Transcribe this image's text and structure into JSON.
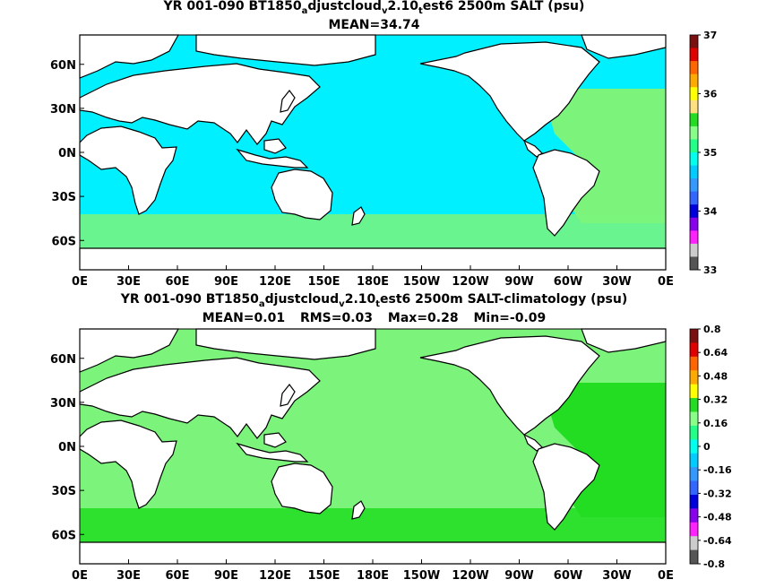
{
  "panels": [
    {
      "title": {
        "prefix": "YR 001-090 BT1850",
        "s1": "a",
        "m1": "djustcloud",
        "s2": "v",
        "m2": "2.10",
        "s3": "t",
        "suffix": "est6 2500m SALT (psu)"
      },
      "stats": [
        "MEAN=34.74"
      ],
      "ocean_color": "#00f0ff",
      "atlantic_color": "#7cf47c",
      "colorbar": {
        "colors": [
          "#7a1010",
          "#e00000",
          "#ff6600",
          "#ffaa00",
          "#ffff00",
          "#ffe080",
          "#22dd22",
          "#88ff88",
          "#22ff88",
          "#00ffee",
          "#00ccff",
          "#3399ff",
          "#3366ff",
          "#0000dd",
          "#8800ee",
          "#ff22ff",
          "#cccccc",
          "#555555"
        ],
        "labels": [
          "37",
          "36",
          "35",
          "34",
          "33"
        ]
      }
    },
    {
      "title": {
        "prefix": "YR 001-090 BT1850",
        "s1": "a",
        "m1": "djustcloud",
        "s2": "v",
        "m2": "2.10",
        "s3": "t",
        "suffix": "est6 2500m SALT-climatology (psu)"
      },
      "stats": [
        "MEAN=0.01",
        "RMS=0.03",
        "Max=0.28",
        "Min=-0.09"
      ],
      "ocean_color": "#7cf47c",
      "atlantic_color": "#22dd22",
      "colorbar": {
        "colors": [
          "#7a1010",
          "#e00000",
          "#ff6600",
          "#ffaa00",
          "#ffff00",
          "#22dd22",
          "#88ff88",
          "#22ff88",
          "#00ffee",
          "#00ccff",
          "#3399ff",
          "#3366ff",
          "#0000dd",
          "#8800ee",
          "#ff22ff",
          "#cccccc",
          "#555555"
        ],
        "labels": [
          "0.8",
          "0.64",
          "0.48",
          "0.32",
          "0.16",
          "0",
          "-0.16",
          "-0.32",
          "-0.48",
          "-0.64",
          "-0.8"
        ]
      }
    }
  ],
  "map_axes": {
    "x_labels": [
      "0E",
      "30E",
      "60E",
      "90E",
      "120E",
      "150E",
      "180E",
      "150W",
      "120W",
      "90W",
      "60W",
      "30W",
      "0E"
    ],
    "y_labels": [
      "60N",
      "30N",
      "0N",
      "30S",
      "60S"
    ]
  }
}
